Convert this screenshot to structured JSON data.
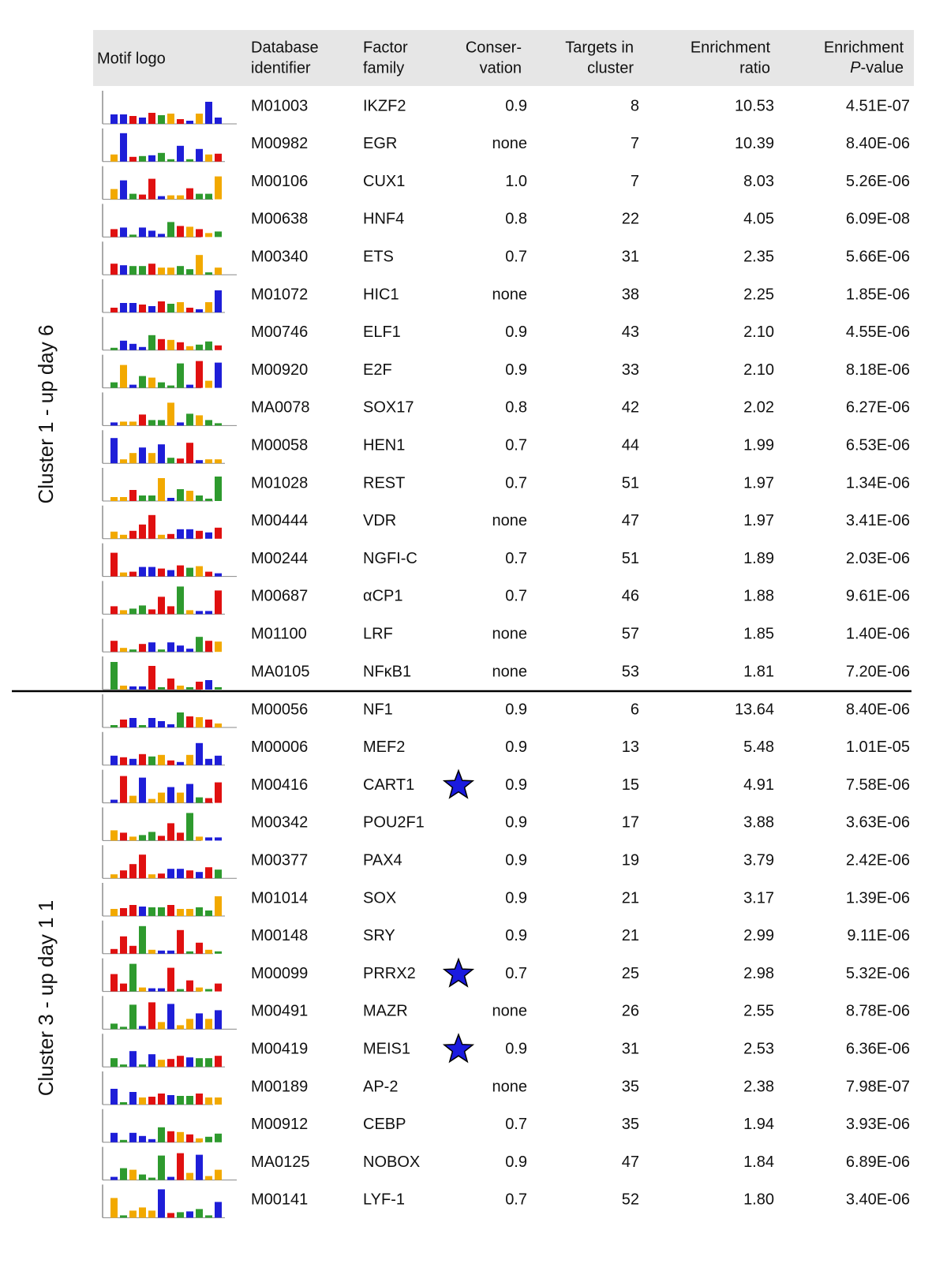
{
  "table": {
    "headers": [
      {
        "lines": [
          "Motif logo"
        ]
      },
      {
        "lines": [
          "Database",
          "identifier"
        ]
      },
      {
        "lines": [
          "Factor",
          "family"
        ]
      },
      {
        "lines": [
          "Conser-",
          "vation"
        ]
      },
      {
        "lines": [
          "Targets in",
          "cluster"
        ]
      },
      {
        "lines": [
          "Enrichment",
          "ratio"
        ]
      },
      {
        "lines": [
          "Enrichment"
        ],
        "italic": "P",
        "suffix": "-value"
      }
    ],
    "groups": [
      {
        "label": "Cluster 1 - up day 6",
        "rows": [
          {
            "cells": [
              "M01003",
              "IKZF2",
              "0.9",
              "8",
              "10.53",
              "4.51E-07"
            ]
          },
          {
            "cells": [
              "M00982",
              "EGR",
              "none",
              "7",
              "10.39",
              "8.40E-06"
            ]
          },
          {
            "cells": [
              "M00106",
              "CUX1",
              "1.0",
              "7",
              "8.03",
              "5.26E-06"
            ]
          },
          {
            "cells": [
              "M00638",
              "HNF4",
              "0.8",
              "22",
              "4.05",
              "6.09E-08"
            ]
          },
          {
            "cells": [
              "M00340",
              "ETS",
              "0.7",
              "31",
              "2.35",
              "5.66E-06"
            ]
          },
          {
            "cells": [
              "M01072",
              "HIC1",
              "none",
              "38",
              "2.25",
              "1.85E-06"
            ]
          },
          {
            "cells": [
              "M00746",
              "ELF1",
              "0.9",
              "43",
              "2.10",
              "4.55E-06"
            ]
          },
          {
            "cells": [
              "M00920",
              "E2F",
              "0.9",
              "33",
              "2.10",
              "8.18E-06"
            ]
          },
          {
            "cells": [
              "MA0078",
              "SOX17",
              "0.8",
              "42",
              "2.02",
              "6.27E-06"
            ]
          },
          {
            "cells": [
              "M00058",
              "HEN1",
              "0.7",
              "44",
              "1.99",
              "6.53E-06"
            ]
          },
          {
            "cells": [
              "M01028",
              "REST",
              "0.7",
              "51",
              "1.97",
              "1.34E-06"
            ]
          },
          {
            "cells": [
              "M00444",
              "VDR",
              "none",
              "47",
              "1.97",
              "3.41E-06"
            ]
          },
          {
            "cells": [
              "M00244",
              "NGFI-C",
              "0.7",
              "51",
              "1.89",
              "2.03E-06"
            ]
          },
          {
            "cells": [
              "M00687",
              "αCP1",
              "0.7",
              "46",
              "1.88",
              "9.61E-06"
            ]
          },
          {
            "cells": [
              "M01100",
              "LRF",
              "none",
              "57",
              "1.85",
              "1.40E-06"
            ]
          },
          {
            "cells": [
              "MA0105",
              "NFκB1",
              "none",
              "53",
              "1.81",
              "7.20E-06"
            ]
          }
        ]
      },
      {
        "label": "Cluster 3 - up day 1 1",
        "rows": [
          {
            "cells": [
              "M00056",
              "NF1",
              "0.9",
              "6",
              "13.64",
              "8.40E-06"
            ]
          },
          {
            "cells": [
              "M00006",
              "MEF2",
              "0.9",
              "13",
              "5.48",
              "1.01E-05"
            ]
          },
          {
            "cells": [
              "M00416",
              "CART1",
              "0.9",
              "15",
              "4.91",
              "7.58E-06"
            ],
            "star": true
          },
          {
            "cells": [
              "M00342",
              "POU2F1",
              "0.9",
              "17",
              "3.88",
              "3.63E-06"
            ]
          },
          {
            "cells": [
              "M00377",
              "PAX4",
              "0.9",
              "19",
              "3.79",
              "2.42E-06"
            ]
          },
          {
            "cells": [
              "M01014",
              "SOX",
              "0.9",
              "21",
              "3.17",
              "1.39E-06"
            ]
          },
          {
            "cells": [
              "M00148",
              "SRY",
              "0.9",
              "21",
              "2.99",
              "9.11E-06"
            ]
          },
          {
            "cells": [
              "M00099",
              "PRRX2",
              "0.7",
              "25",
              "2.98",
              "5.32E-06"
            ],
            "star": true
          },
          {
            "cells": [
              "M00491",
              "MAZR",
              "none",
              "26",
              "2.55",
              "8.78E-06"
            ]
          },
          {
            "cells": [
              "M00419",
              "MEIS1",
              "0.9",
              "31",
              "2.53",
              "6.36E-06"
            ],
            "star": true
          },
          {
            "cells": [
              "M00189",
              "AP-2",
              "none",
              "35",
              "2.38",
              "7.98E-07"
            ]
          },
          {
            "cells": [
              "M00912",
              "CEBP",
              "0.7",
              "35",
              "1.94",
              "3.93E-06"
            ]
          },
          {
            "cells": [
              "MA0125",
              "NOBOX",
              "0.9",
              "47",
              "1.84",
              "6.89E-06"
            ]
          },
          {
            "cells": [
              "M00141",
              "LYF-1",
              "0.7",
              "52",
              "1.80",
              "3.40E-06"
            ]
          }
        ]
      }
    ]
  }
}
